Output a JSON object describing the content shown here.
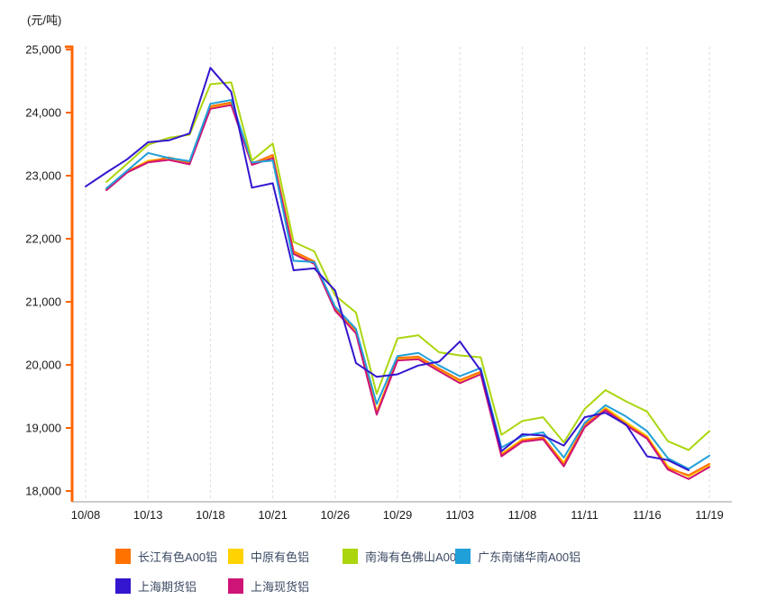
{
  "chart_data": {
    "type": "line",
    "title": "",
    "ylabel": "(元/吨)",
    "xlabel": "",
    "ylim": [
      18000,
      25000
    ],
    "y_tick_step": 1000,
    "grid": "vertical-dashed",
    "legend_position": "bottom",
    "y_tick_labels": [
      "25,000",
      "24,000",
      "23,000",
      "22,000",
      "21,000",
      "20,000",
      "19,000",
      "18,000"
    ],
    "x_tick_labels": [
      "10/08",
      "10/13",
      "10/18",
      "10/21",
      "10/26",
      "10/29",
      "11/03",
      "11/08",
      "11/11",
      "11/16",
      "11/19"
    ],
    "x": [
      "10/08",
      "10/11",
      "10/12",
      "10/13",
      "10/14",
      "10/15",
      "10/18",
      "10/19",
      "10/20",
      "10/21",
      "10/22",
      "10/25",
      "10/26",
      "10/27",
      "10/28",
      "10/29",
      "11/01",
      "11/02",
      "11/03",
      "11/04",
      "11/05",
      "11/08",
      "11/09",
      "11/10",
      "11/11",
      "11/12",
      "11/15",
      "11/16",
      "11/17",
      "11/18",
      "11/19"
    ],
    "series": [
      {
        "name": "长江有色A00铝",
        "color": "#FF7200",
        "values": [
          null,
          22780,
          23070,
          23220,
          23290,
          23210,
          24100,
          24160,
          23190,
          23330,
          21800,
          21640,
          20900,
          20550,
          19230,
          20110,
          20130,
          19940,
          19760,
          19890,
          18570,
          18800,
          18850,
          18420,
          19050,
          19300,
          19060,
          18850,
          18360,
          18250,
          18430
        ]
      },
      {
        "name": "中原有色铝",
        "color": "#FFD200",
        "values": [
          null,
          22790,
          23060,
          23240,
          23270,
          23200,
          24080,
          24140,
          23200,
          23300,
          21780,
          21620,
          20880,
          20520,
          19260,
          20090,
          20110,
          19920,
          19740,
          19870,
          18590,
          18820,
          18840,
          18450,
          19030,
          19320,
          19090,
          18870,
          18390,
          18230,
          18410
        ]
      },
      {
        "name": "南海有色佛山A00铝",
        "color": "#ABD60E",
        "values": [
          null,
          22900,
          23190,
          23490,
          23600,
          23650,
          24450,
          24480,
          23240,
          23510,
          21950,
          21800,
          21100,
          20830,
          19540,
          20420,
          20470,
          20200,
          20150,
          20120,
          18890,
          19110,
          19170,
          18770,
          19300,
          19600,
          19420,
          19260,
          18790,
          18650,
          18950
        ]
      },
      {
        "name": "广东南储华南A00铝",
        "color": "#219FD9",
        "values": [
          null,
          22800,
          23080,
          23360,
          23280,
          23230,
          24140,
          24200,
          23210,
          23240,
          21650,
          21630,
          20920,
          20570,
          19380,
          20140,
          20190,
          19990,
          19820,
          19950,
          18690,
          18870,
          18930,
          18530,
          19080,
          19360,
          19180,
          18950,
          18520,
          18350,
          18560
        ]
      },
      {
        "name": "上海期货铝",
        "color": "#3316CE",
        "values": [
          22830,
          23050,
          23260,
          23530,
          23560,
          23670,
          24710,
          24330,
          22810,
          22880,
          21500,
          21530,
          21180,
          20030,
          19810,
          19850,
          19990,
          20050,
          20370,
          19910,
          18630,
          18900,
          18880,
          18720,
          19170,
          19240,
          19050,
          18550,
          18490,
          18330,
          null
        ]
      },
      {
        "name": "上海现货铝",
        "color": "#CE1477",
        "values": [
          null,
          22770,
          23050,
          23210,
          23250,
          23180,
          24060,
          24120,
          23170,
          23280,
          21760,
          21600,
          20860,
          20500,
          19210,
          20070,
          20090,
          19900,
          19710,
          19850,
          18550,
          18780,
          18820,
          18390,
          19010,
          19280,
          19040,
          18830,
          18340,
          18190,
          18380
        ]
      }
    ],
    "draw_order": [
      1,
      0,
      5,
      3,
      2,
      4
    ],
    "colors": {
      "grid": "#DDDDDD",
      "x_axis_line": "#CCCCCC",
      "y_axis_line": "#FF6600",
      "tick_text": "#1A1A1A",
      "legend_text": "#3B4A63"
    }
  }
}
